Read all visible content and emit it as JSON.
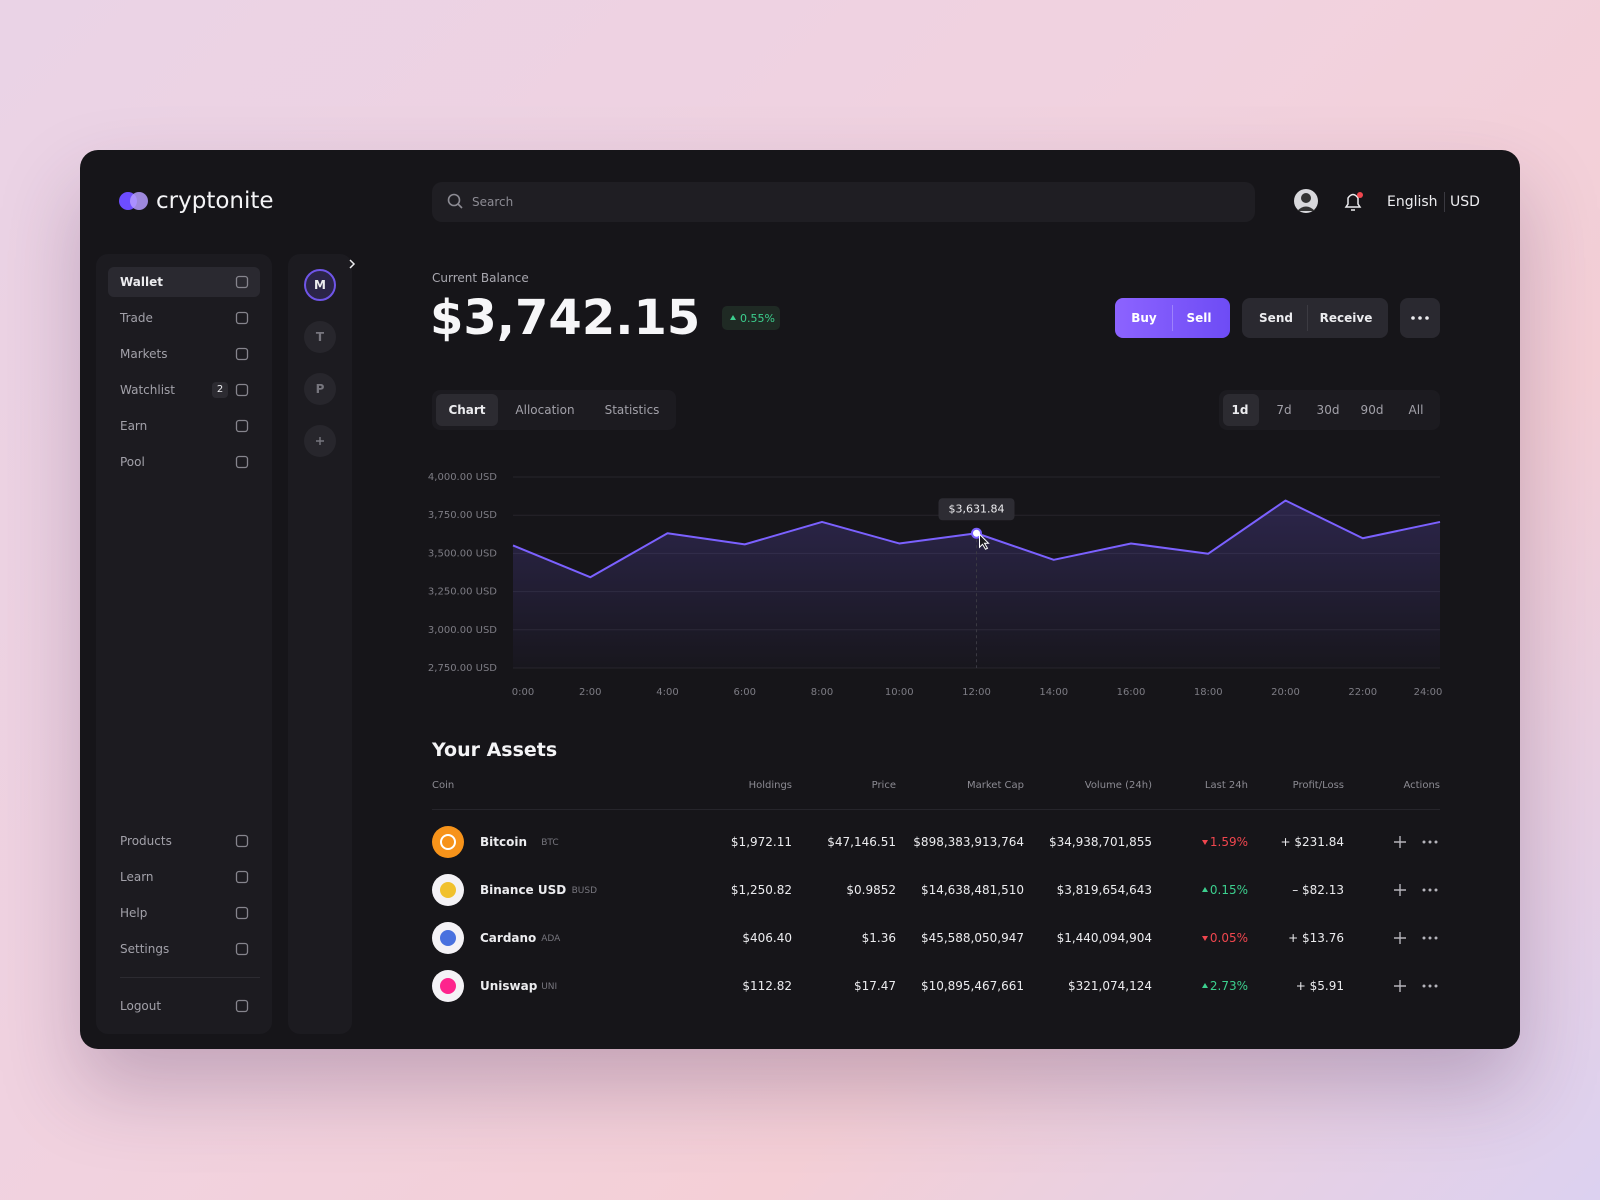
{
  "brand": "cryptonite",
  "search": {
    "placeholder": "Search"
  },
  "header": {
    "language": "English",
    "currency": "USD"
  },
  "nav": {
    "main": [
      {
        "label": "Wallet",
        "active": true
      },
      {
        "label": "Trade"
      },
      {
        "label": "Markets"
      },
      {
        "label": "Watchlist",
        "badge": 2
      },
      {
        "label": "Earn"
      },
      {
        "label": "Pool"
      }
    ],
    "secondary": [
      {
        "label": "Products"
      },
      {
        "label": "Learn"
      },
      {
        "label": "Help"
      },
      {
        "label": "Settings"
      }
    ],
    "logout": "Logout"
  },
  "accounts": [
    "M",
    "T",
    "P"
  ],
  "balance": {
    "label": "Current Balance",
    "amount": "$3,742.15",
    "change": "0.55%",
    "trend": "up"
  },
  "actions": [
    "Buy",
    "Sell",
    "Send",
    "Receive"
  ],
  "tabs": [
    "Chart",
    "Allocation",
    "Statistics"
  ],
  "active_tab": 0,
  "ranges": [
    "1d",
    "7d",
    "30d",
    "90d",
    "All"
  ],
  "active_range": 0,
  "chart_data": {
    "type": "line",
    "categories": [
      "0:00",
      "2:00",
      "4:00",
      "6:00",
      "8:00",
      "10:00",
      "12:00",
      "14:00",
      "16:00",
      "18:00",
      "20:00",
      "22:00",
      "24:00"
    ],
    "series": [
      {
        "color": "#7b61ff",
        "values": [
          3552,
          3344,
          3632,
          3559,
          3706,
          3565,
          3631.84,
          3458,
          3565,
          3498,
          3846,
          3599,
          3706
        ]
      }
    ],
    "ylim": [
      2750,
      4000
    ],
    "yticks": [
      {
        "value": 2750,
        "label": "2,750.00 USD"
      },
      {
        "value": 3000,
        "label": "3,000.00 USD"
      },
      {
        "value": 3250,
        "label": "3,250.00 USD"
      },
      {
        "value": 3500,
        "label": "3,500.00 USD"
      },
      {
        "value": 3750,
        "label": "3,750.00 USD"
      },
      {
        "value": 4000,
        "label": "4,000.00 USD"
      }
    ],
    "grid": true,
    "tooltip": {
      "index": 6,
      "label": "$3,631.84"
    }
  },
  "assets": {
    "title": "Your Assets",
    "columns": [
      "Coin",
      "Holdings",
      "Price",
      "Market Cap",
      "Volume (24h)",
      "Last 24h",
      "Profit/Loss",
      "Actions"
    ],
    "rows": [
      {
        "name": "Bitcoin",
        "symbol": "BTC",
        "holdings": "$1,972.11",
        "price": "$47,146.51",
        "market_cap": "$898,383,913,764",
        "volume": "$34,938,701,855",
        "change": "1.59%",
        "trend": "down",
        "profit": "+ $231.84",
        "icon_color": "#f7931a"
      },
      {
        "name": "Binance USD",
        "symbol": "BUSD",
        "holdings": "$1,250.82",
        "price": "$0.9852",
        "market_cap": "$14,638,481,510",
        "volume": "$3,819,654,643",
        "change": "0.15%",
        "trend": "up",
        "profit": "– $82.13",
        "icon_color": "#f0b90b"
      },
      {
        "name": "Cardano",
        "symbol": "ADA",
        "holdings": "$406.40",
        "price": "$1.36",
        "market_cap": "$45,588,050,947",
        "volume": "$1,440,094,904",
        "change": "0.05%",
        "trend": "down",
        "profit": "+ $13.76",
        "icon_color": "#2a5ada"
      },
      {
        "name": "Uniswap",
        "symbol": "UNI",
        "holdings": "$112.82",
        "price": "$17.47",
        "market_cap": "$10,895,467,661",
        "volume": "$321,074,124",
        "change": "2.73%",
        "trend": "up",
        "profit": "+ $5.91",
        "icon_color": "#ff007a"
      }
    ]
  }
}
